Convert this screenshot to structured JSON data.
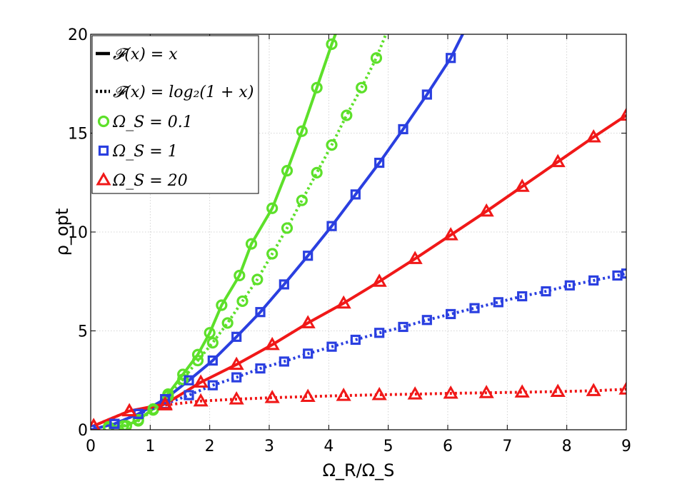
{
  "chart_data": {
    "type": "line",
    "xlabel": "Ω_R/Ω_S",
    "ylabel": "ρ_opt",
    "xlim": [
      0,
      9
    ],
    "ylim": [
      0,
      20
    ],
    "xticks": [
      "0",
      "1",
      "2",
      "3",
      "4",
      "5",
      "6",
      "7",
      "8",
      "9"
    ],
    "yticks": [
      "0",
      "5",
      "10",
      "15",
      "20"
    ],
    "grid": true,
    "legend_position": "top-left",
    "legend": [
      {
        "label": "𝓕(x) = x",
        "style": "solid"
      },
      {
        "label": "𝓕(x) = log₂(1 + x)",
        "style": "dotted"
      },
      {
        "label": "Ω_S = 0.1",
        "marker": "circle",
        "color": "#5de02a"
      },
      {
        "label": "Ω_S = 1",
        "marker": "square",
        "color": "#2a3fe0"
      },
      {
        "label": "Ω_S = 20",
        "marker": "triangle",
        "color": "#f01818"
      }
    ],
    "series": [
      {
        "omega_s": "0.1",
        "F": "x",
        "color": "#5de02a",
        "marker": "circle",
        "dash": "solid",
        "points": [
          [
            0.3,
            0.15
          ],
          [
            0.6,
            0.2
          ],
          [
            0.8,
            0.5
          ],
          [
            1.05,
            1.05
          ],
          [
            1.3,
            1.8
          ],
          [
            1.55,
            2.8
          ],
          [
            1.8,
            3.8
          ],
          [
            2.0,
            4.9
          ],
          [
            2.2,
            6.3
          ],
          [
            2.5,
            7.8
          ],
          [
            2.7,
            9.4
          ],
          [
            3.05,
            11.2
          ],
          [
            3.3,
            13.1
          ],
          [
            3.55,
            15.1
          ],
          [
            3.8,
            17.3
          ],
          [
            4.05,
            19.5
          ],
          [
            4.15,
            20.3
          ]
        ]
      },
      {
        "omega_s": "0.1",
        "F": "log2(1+x)",
        "color": "#5de02a",
        "marker": "circle",
        "dash": "dotted",
        "points": [
          [
            0.3,
            0.1
          ],
          [
            0.55,
            0.2
          ],
          [
            0.8,
            0.45
          ],
          [
            1.05,
            1.0
          ],
          [
            1.3,
            1.7
          ],
          [
            1.55,
            2.55
          ],
          [
            1.8,
            3.5
          ],
          [
            2.05,
            4.4
          ],
          [
            2.3,
            5.4
          ],
          [
            2.55,
            6.5
          ],
          [
            2.8,
            7.6
          ],
          [
            3.05,
            8.9
          ],
          [
            3.3,
            10.2
          ],
          [
            3.55,
            11.6
          ],
          [
            3.8,
            13.0
          ],
          [
            4.05,
            14.4
          ],
          [
            4.3,
            15.9
          ],
          [
            4.55,
            17.3
          ],
          [
            4.8,
            18.8
          ],
          [
            5.0,
            20.3
          ]
        ]
      },
      {
        "omega_s": "1",
        "F": "x",
        "color": "#2a3fe0",
        "marker": "square",
        "dash": "solid",
        "points": [
          [
            0,
            0
          ],
          [
            0.4,
            0.3
          ],
          [
            0.8,
            0.8
          ],
          [
            1.25,
            1.55
          ],
          [
            1.65,
            2.5
          ],
          [
            2.05,
            3.5
          ],
          [
            2.45,
            4.7
          ],
          [
            2.85,
            5.95
          ],
          [
            3.25,
            7.35
          ],
          [
            3.65,
            8.8
          ],
          [
            4.05,
            10.3
          ],
          [
            4.45,
            11.9
          ],
          [
            4.85,
            13.5
          ],
          [
            5.25,
            15.2
          ],
          [
            5.65,
            16.95
          ],
          [
            6.05,
            18.8
          ],
          [
            6.3,
            20.3
          ]
        ]
      },
      {
        "omega_s": "1",
        "F": "log2(1+x)",
        "color": "#2a3fe0",
        "marker": "square",
        "dash": "dotted",
        "points": [
          [
            0,
            0
          ],
          [
            0.4,
            0.3
          ],
          [
            0.8,
            0.8
          ],
          [
            1.25,
            1.3
          ],
          [
            1.65,
            1.75
          ],
          [
            2.05,
            2.25
          ],
          [
            2.45,
            2.65
          ],
          [
            2.85,
            3.1
          ],
          [
            3.25,
            3.45
          ],
          [
            3.65,
            3.85
          ],
          [
            4.05,
            4.2
          ],
          [
            4.45,
            4.55
          ],
          [
            4.85,
            4.9
          ],
          [
            5.25,
            5.2
          ],
          [
            5.65,
            5.55
          ],
          [
            6.05,
            5.85
          ],
          [
            6.45,
            6.15
          ],
          [
            6.85,
            6.45
          ],
          [
            7.25,
            6.75
          ],
          [
            7.65,
            7.0
          ],
          [
            8.05,
            7.3
          ],
          [
            8.45,
            7.55
          ],
          [
            8.85,
            7.8
          ],
          [
            9.0,
            7.9
          ]
        ]
      },
      {
        "omega_s": "20",
        "F": "x",
        "color": "#f01818",
        "marker": "triangle",
        "dash": "solid",
        "points": [
          [
            0.05,
            0.2
          ],
          [
            0.65,
            0.95
          ],
          [
            1.25,
            1.3
          ],
          [
            1.85,
            2.4
          ],
          [
            2.45,
            3.3
          ],
          [
            3.05,
            4.3
          ],
          [
            3.65,
            5.4
          ],
          [
            4.25,
            6.4
          ],
          [
            4.85,
            7.5
          ],
          [
            5.45,
            8.65
          ],
          [
            6.05,
            9.85
          ],
          [
            6.65,
            11.05
          ],
          [
            7.25,
            12.3
          ],
          [
            7.85,
            13.55
          ],
          [
            8.45,
            14.8
          ],
          [
            9.0,
            15.9
          ]
        ]
      },
      {
        "omega_s": "20",
        "F": "log2(1+x)",
        "color": "#f01818",
        "marker": "triangle",
        "dash": "dotted",
        "points": [
          [
            0.05,
            0.2
          ],
          [
            0.65,
            0.95
          ],
          [
            1.25,
            1.25
          ],
          [
            1.85,
            1.45
          ],
          [
            2.45,
            1.55
          ],
          [
            3.05,
            1.62
          ],
          [
            3.65,
            1.68
          ],
          [
            4.25,
            1.73
          ],
          [
            4.85,
            1.77
          ],
          [
            5.45,
            1.8
          ],
          [
            6.05,
            1.84
          ],
          [
            6.65,
            1.87
          ],
          [
            7.25,
            1.9
          ],
          [
            7.85,
            1.93
          ],
          [
            8.45,
            1.97
          ],
          [
            9.0,
            2.05
          ]
        ]
      }
    ]
  }
}
